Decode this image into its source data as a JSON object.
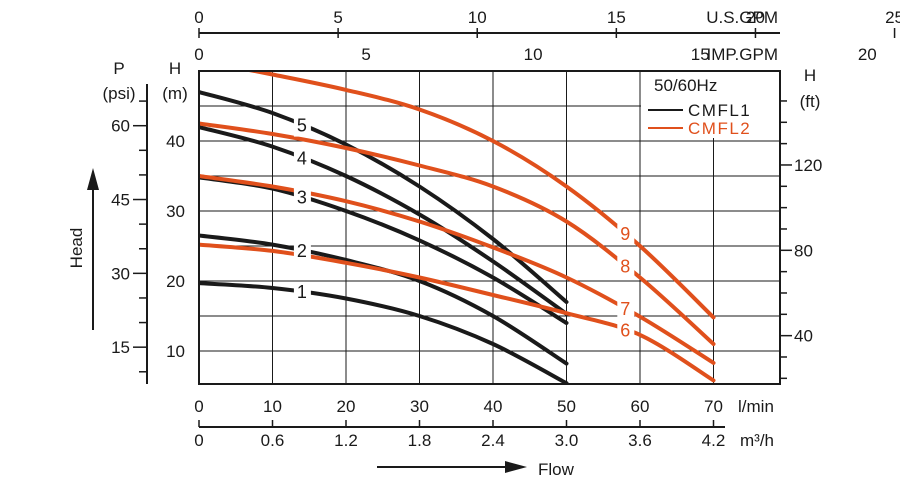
{
  "chart_data": {
    "type": "line",
    "title": "50/60Hz",
    "x_label": "Flow",
    "y_label": "Head",
    "x_axes": {
      "usgpm": {
        "unit": "U.S.GPM",
        "ticks": [
          "0",
          "5",
          "10",
          "15",
          "20",
          "25"
        ],
        "values": [
          0,
          5,
          10,
          15,
          20,
          25
        ]
      },
      "impgpm": {
        "unit": "IMP.GPM",
        "ticks": [
          "0",
          "5",
          "10",
          "15",
          "20"
        ],
        "values": [
          0,
          5,
          10,
          15,
          20
        ]
      },
      "lmin": {
        "unit": "l/min",
        "ticks": [
          "0",
          "10",
          "20",
          "30",
          "40",
          "50",
          "60",
          "70"
        ],
        "values": [
          0,
          10,
          20,
          30,
          40,
          50,
          60,
          70
        ]
      },
      "m3h": {
        "unit": "m³/h",
        "ticks": [
          "0",
          "0.6",
          "1.2",
          "1.8",
          "2.4",
          "3.0",
          "3.6",
          "4.2"
        ],
        "values": [
          0,
          0.6,
          1.2,
          1.8,
          2.4,
          3.0,
          3.6,
          4.2
        ]
      }
    },
    "y_axes": {
      "psi": {
        "unit_top": "P",
        "unit_bottom": "(psi)",
        "ticks": [
          "15",
          "30",
          "45",
          "60"
        ],
        "values": [
          15,
          30,
          45,
          60
        ]
      },
      "m": {
        "unit_top": "H",
        "unit_bottom": "(m)",
        "ticks": [
          "10",
          "20",
          "30",
          "40"
        ],
        "values": [
          10,
          20,
          30,
          40
        ]
      },
      "ft": {
        "unit_top": "H",
        "unit_bottom": "(ft)",
        "ticks": [
          "40",
          "80",
          "120"
        ],
        "values": [
          40,
          80,
          120
        ]
      }
    },
    "x_range_lmin": [
      0,
      75
    ],
    "y_range_m": [
      4.5,
      50
    ],
    "legend": {
      "placement": "top-right",
      "heading": "50/60Hz",
      "items": [
        {
          "name": "CMFL1",
          "color": "#1a1a1a"
        },
        {
          "name": "CMFL2",
          "color": "#e0501c"
        }
      ]
    },
    "series": [
      {
        "name": "1",
        "group": "CMFL1",
        "color": "#1a1a1a",
        "x": [
          0,
          10,
          20,
          30,
          40,
          50
        ],
        "y": [
          19.7,
          19.0,
          17.5,
          15.0,
          11.0,
          5.4
        ]
      },
      {
        "name": "2",
        "group": "CMFL1",
        "color": "#1a1a1a",
        "x": [
          0,
          10,
          20,
          30,
          40,
          50
        ],
        "y": [
          26.5,
          25.2,
          23.0,
          20.0,
          15.0,
          8.2
        ]
      },
      {
        "name": "3",
        "group": "CMFL1",
        "color": "#1a1a1a",
        "x": [
          0,
          10,
          20,
          30,
          40,
          50
        ],
        "y": [
          34.8,
          33.2,
          30.0,
          25.8,
          20.5,
          14.0
        ]
      },
      {
        "name": "4",
        "group": "CMFL1",
        "color": "#1a1a1a",
        "x": [
          0,
          10,
          20,
          30,
          40,
          50
        ],
        "y": [
          42.0,
          39.2,
          35.0,
          29.5,
          22.8,
          15.3
        ]
      },
      {
        "name": "5",
        "group": "CMFL1",
        "color": "#1a1a1a",
        "x": [
          0,
          10,
          20,
          30,
          40,
          50
        ],
        "y": [
          47.0,
          44.0,
          39.5,
          33.5,
          26.0,
          17.0
        ]
      },
      {
        "name": "6",
        "group": "CMFL2",
        "color": "#e0501c",
        "x": [
          0,
          10,
          20,
          30,
          40,
          50,
          60,
          70
        ],
        "y": [
          25.2,
          24.3,
          22.6,
          20.5,
          18.0,
          15.4,
          12.3,
          5.8
        ]
      },
      {
        "name": "7",
        "group": "CMFL2",
        "color": "#e0501c",
        "x": [
          0,
          10,
          20,
          30,
          40,
          50,
          60,
          70
        ],
        "y": [
          35.0,
          33.5,
          31.4,
          28.5,
          24.8,
          20.5,
          14.9,
          8.3
        ]
      },
      {
        "name": "8",
        "group": "CMFL2",
        "color": "#e0501c",
        "x": [
          0,
          10,
          20,
          30,
          40,
          50,
          60,
          70
        ],
        "y": [
          42.5,
          41.0,
          39.0,
          36.5,
          33.5,
          28.5,
          20.5,
          11.0
        ]
      },
      {
        "name": "9",
        "group": "CMFL2",
        "color": "#e0501c",
        "x": [
          0,
          10,
          20,
          30,
          40,
          50,
          60,
          70
        ],
        "y": [
          51.5,
          49.5,
          47.3,
          44.5,
          40.0,
          33.5,
          25.0,
          14.8
        ]
      }
    ]
  }
}
